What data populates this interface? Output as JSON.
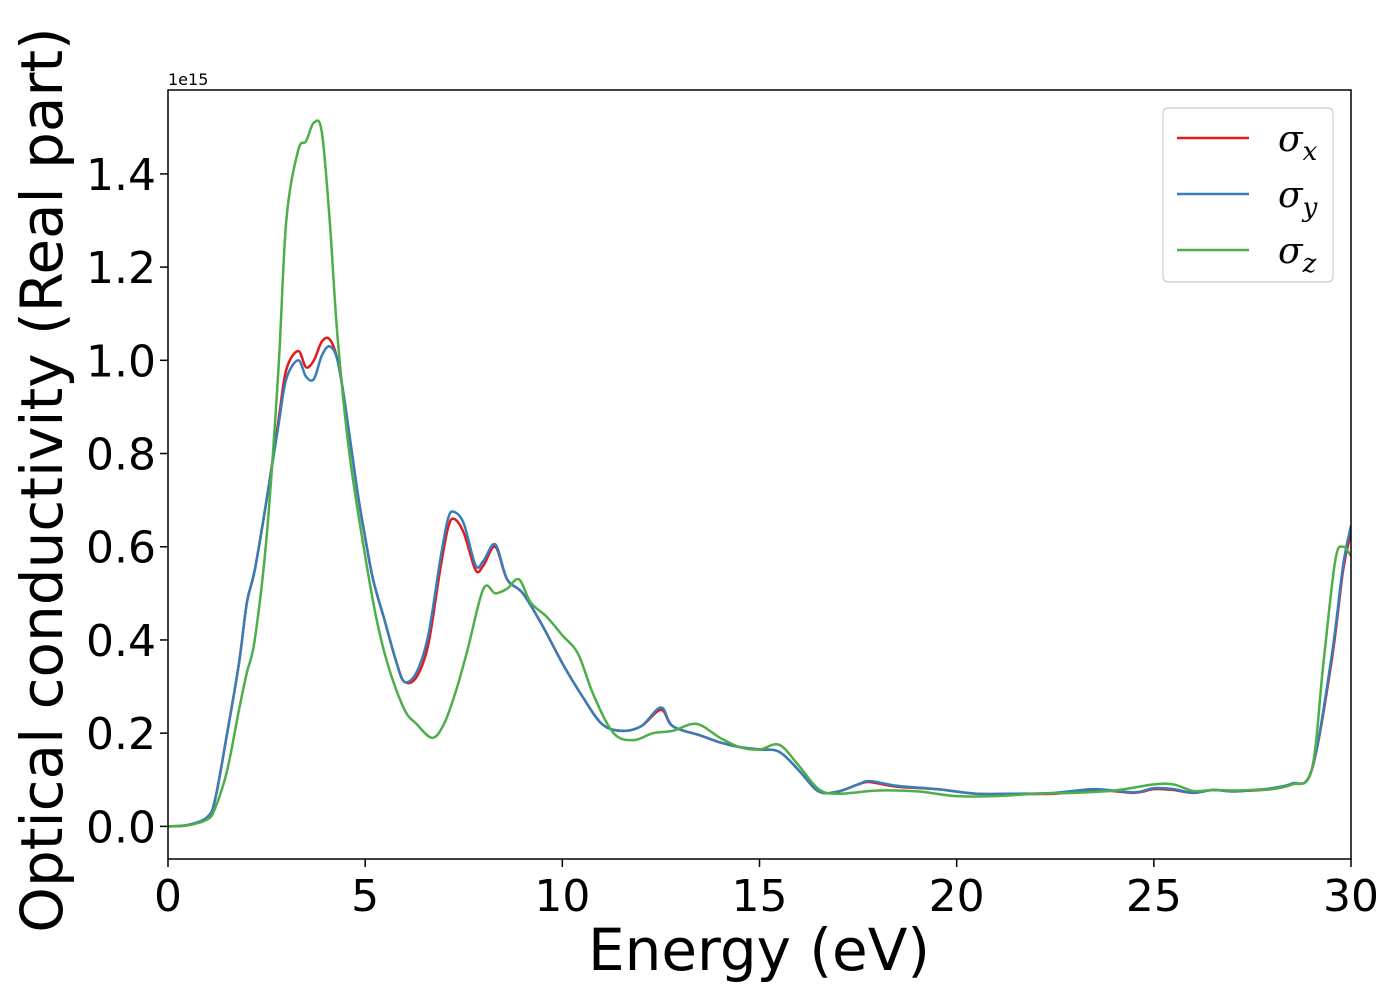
{
  "chart_data": {
    "type": "line",
    "xlabel": "Energy (eV)",
    "ylabel": "Optical conductivity (Real part)",
    "offset_text": "1e15",
    "xlim": [
      0,
      30
    ],
    "ylim": [
      -0.07,
      1.58
    ],
    "xticks": [
      0,
      5,
      10,
      15,
      20,
      25,
      30
    ],
    "xtick_labels": [
      "0",
      "5",
      "10",
      "15",
      "20",
      "25",
      "30"
    ],
    "yticks": [
      0.0,
      0.2,
      0.4,
      0.6,
      0.8,
      1.0,
      1.2,
      1.4
    ],
    "ytick_labels": [
      "0.0",
      "0.2",
      "0.4",
      "0.6",
      "0.8",
      "1.0",
      "1.2",
      "1.4"
    ],
    "grid": false,
    "legend_position": "top-right",
    "series": [
      {
        "name": "σx",
        "symbol": "σ",
        "subscript": "x",
        "color": "#e41a1c",
        "x": [
          0,
          0.5,
          1.0,
          1.2,
          1.5,
          1.8,
          2.0,
          2.2,
          2.5,
          2.8,
          3.0,
          3.3,
          3.5,
          3.7,
          3.9,
          4.1,
          4.3,
          4.5,
          4.8,
          5.0,
          5.2,
          5.5,
          5.8,
          6.0,
          6.3,
          6.6,
          6.9,
          7.1,
          7.25,
          7.5,
          7.8,
          8.0,
          8.3,
          8.6,
          9.0,
          9.5,
          10.0,
          10.5,
          11.0,
          11.5,
          12.0,
          12.5,
          12.8,
          13.5,
          14.0,
          14.5,
          15.0,
          15.5,
          16.0,
          16.5,
          17.0,
          17.5,
          17.8,
          18.5,
          19.5,
          20.5,
          21.5,
          22.5,
          23.5,
          24.5,
          25.0,
          25.5,
          26.0,
          26.5,
          27.0,
          27.5,
          28.0,
          28.5,
          29.0,
          29.5,
          29.8,
          30.0
        ],
        "y": [
          0,
          0.003,
          0.02,
          0.06,
          0.2,
          0.35,
          0.48,
          0.55,
          0.7,
          0.87,
          0.98,
          1.02,
          0.985,
          1.0,
          1.04,
          1.045,
          1.0,
          0.9,
          0.72,
          0.62,
          0.53,
          0.44,
          0.35,
          0.31,
          0.32,
          0.39,
          0.55,
          0.64,
          0.66,
          0.63,
          0.55,
          0.56,
          0.6,
          0.53,
          0.5,
          0.43,
          0.35,
          0.28,
          0.22,
          0.205,
          0.215,
          0.25,
          0.215,
          0.195,
          0.18,
          0.17,
          0.165,
          0.16,
          0.12,
          0.075,
          0.075,
          0.09,
          0.095,
          0.085,
          0.08,
          0.07,
          0.07,
          0.07,
          0.078,
          0.072,
          0.08,
          0.078,
          0.072,
          0.078,
          0.075,
          0.077,
          0.08,
          0.09,
          0.12,
          0.35,
          0.55,
          0.63
        ]
      },
      {
        "name": "σy",
        "symbol": "σ",
        "subscript": "y",
        "color": "#377eb8",
        "x": [
          0,
          0.5,
          1.0,
          1.2,
          1.5,
          1.8,
          2.0,
          2.2,
          2.5,
          2.8,
          3.0,
          3.3,
          3.5,
          3.7,
          3.9,
          4.1,
          4.3,
          4.5,
          4.8,
          5.0,
          5.2,
          5.5,
          5.8,
          6.0,
          6.3,
          6.6,
          6.9,
          7.1,
          7.25,
          7.5,
          7.8,
          8.0,
          8.3,
          8.6,
          9.0,
          9.5,
          10.0,
          10.5,
          11.0,
          11.5,
          12.0,
          12.5,
          12.8,
          13.5,
          14.0,
          14.5,
          15.0,
          15.5,
          16.0,
          16.5,
          17.0,
          17.5,
          17.8,
          18.5,
          19.5,
          20.5,
          21.5,
          22.5,
          23.5,
          24.5,
          25.0,
          25.5,
          26.0,
          26.5,
          27.0,
          27.5,
          28.0,
          28.5,
          29.0,
          29.5,
          29.8,
          30.0
        ],
        "y": [
          0,
          0.003,
          0.02,
          0.06,
          0.2,
          0.35,
          0.48,
          0.55,
          0.7,
          0.86,
          0.96,
          1.0,
          0.965,
          0.96,
          1.01,
          1.03,
          1.0,
          0.9,
          0.72,
          0.62,
          0.53,
          0.44,
          0.35,
          0.31,
          0.33,
          0.41,
          0.57,
          0.66,
          0.675,
          0.65,
          0.56,
          0.57,
          0.605,
          0.53,
          0.5,
          0.43,
          0.35,
          0.28,
          0.22,
          0.205,
          0.215,
          0.255,
          0.215,
          0.195,
          0.18,
          0.17,
          0.165,
          0.16,
          0.12,
          0.075,
          0.075,
          0.09,
          0.097,
          0.087,
          0.08,
          0.07,
          0.07,
          0.072,
          0.08,
          0.073,
          0.082,
          0.08,
          0.072,
          0.078,
          0.075,
          0.078,
          0.082,
          0.092,
          0.12,
          0.36,
          0.56,
          0.645
        ]
      },
      {
        "name": "σz",
        "symbol": "σ",
        "subscript": "z",
        "color": "#4daf4a",
        "x": [
          0,
          0.5,
          1.0,
          1.2,
          1.5,
          1.8,
          2.0,
          2.2,
          2.5,
          2.8,
          3.0,
          3.3,
          3.5,
          3.7,
          3.9,
          4.1,
          4.3,
          4.6,
          5.0,
          5.3,
          5.6,
          6.0,
          6.3,
          6.7,
          7.0,
          7.3,
          7.6,
          8.0,
          8.3,
          8.6,
          8.9,
          9.2,
          9.6,
          10.0,
          10.4,
          10.8,
          11.3,
          11.8,
          12.3,
          12.8,
          13.4,
          14.0,
          14.5,
          15.0,
          15.5,
          16.0,
          16.5,
          17.0,
          18.0,
          19.0,
          20.0,
          21.0,
          22.0,
          23.0,
          24.0,
          25.0,
          25.5,
          26.0,
          26.5,
          27.0,
          27.5,
          28.0,
          28.5,
          29.0,
          29.3,
          29.6,
          29.8,
          30.0
        ],
        "y": [
          0,
          0.002,
          0.015,
          0.04,
          0.12,
          0.25,
          0.33,
          0.4,
          0.62,
          0.98,
          1.3,
          1.45,
          1.47,
          1.51,
          1.49,
          1.3,
          1.05,
          0.8,
          0.58,
          0.44,
          0.34,
          0.25,
          0.22,
          0.19,
          0.22,
          0.29,
          0.38,
          0.51,
          0.5,
          0.51,
          0.53,
          0.48,
          0.45,
          0.41,
          0.37,
          0.28,
          0.2,
          0.185,
          0.2,
          0.205,
          0.22,
          0.19,
          0.17,
          0.165,
          0.175,
          0.13,
          0.08,
          0.07,
          0.077,
          0.075,
          0.065,
          0.065,
          0.07,
          0.072,
          0.077,
          0.09,
          0.09,
          0.076,
          0.078,
          0.077,
          0.078,
          0.08,
          0.09,
          0.12,
          0.35,
          0.57,
          0.6,
          0.58
        ]
      }
    ]
  }
}
